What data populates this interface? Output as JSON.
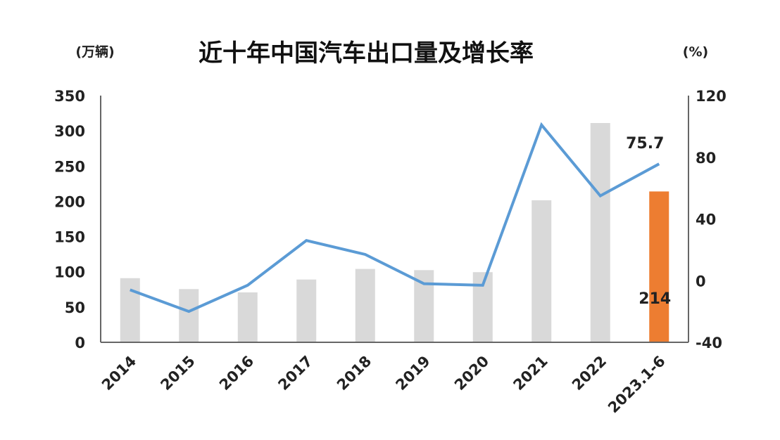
{
  "chart_data": {
    "type": "bar+line",
    "title": "近十年中国汽车出口量及增长率",
    "ylabel_left": "(万辆)",
    "ylabel_right": "(%)",
    "categories": [
      "2014",
      "2015",
      "2016",
      "2017",
      "2018",
      "2019",
      "2020",
      "2021",
      "2022",
      "2023.1-6"
    ],
    "left_axis": {
      "ylim": [
        0,
        350
      ],
      "ticks": [
        "0",
        "50",
        "100",
        "150",
        "200",
        "250",
        "300",
        "350"
      ]
    },
    "right_axis": {
      "ylim": [
        -40,
        120
      ],
      "ticks": [
        "-40",
        "0",
        "40",
        "80",
        "120"
      ]
    },
    "series": [
      {
        "type": "bar",
        "axis": "left",
        "values": [
          91,
          75.5,
          70.8,
          89.1,
          104.1,
          102.4,
          99.5,
          201.5,
          311.1,
          214
        ]
      },
      {
        "type": "line",
        "axis": "right",
        "values": [
          -6,
          -20,
          -3,
          26,
          17,
          -2,
          -3,
          101,
          55,
          75.7
        ]
      }
    ],
    "data_labels": {
      "bar_last": "214",
      "line_last": "75.7"
    },
    "colors": {
      "bar": "#d9d9d9",
      "bar_highlight": "#ed7d31",
      "line": "#5b9bd5",
      "axis": "#666666"
    },
    "grid": false,
    "legend": "none"
  }
}
